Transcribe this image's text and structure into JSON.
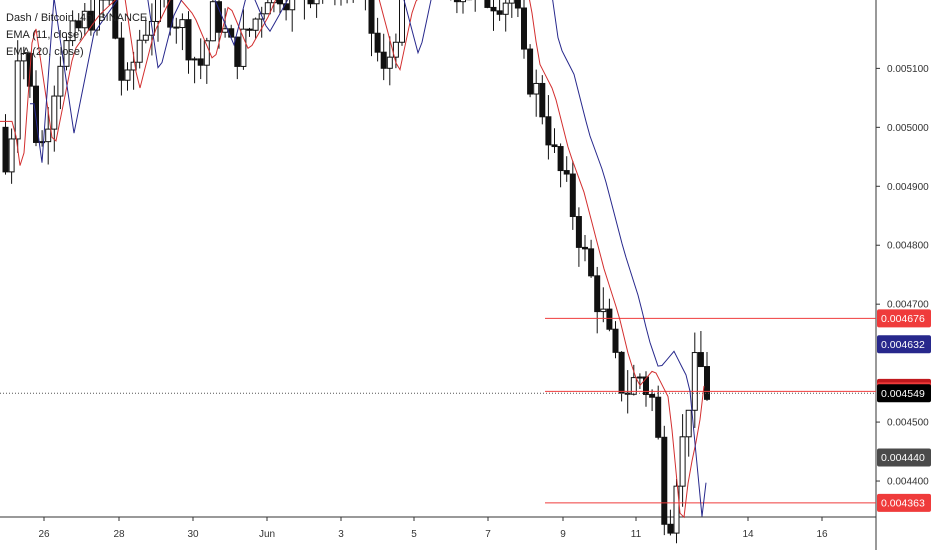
{
  "chart_data": {
    "type": "candlestick",
    "title": "Dash / Bitcoin, 4h, BINANCE",
    "ema_labels": [
      "EMA (11, close)",
      "EMA (20, close)"
    ],
    "y_ticks": [
      "0.005100",
      "0.005000",
      "0.004900",
      "0.004800",
      "0.004700",
      "0.004500",
      "0.004400"
    ],
    "x_ticks": [
      "26",
      "28",
      "30",
      "Jun",
      "3",
      "5",
      "7",
      "9",
      "11",
      "14",
      "16"
    ],
    "ylim": [
      0.004283,
      0.005216
    ],
    "price_badges": [
      {
        "value": "0.004676",
        "color": "#ef3b3b"
      },
      {
        "value": "0.004632",
        "color": "#27288c"
      },
      {
        "value": "0.004558",
        "color": "#c0181c"
      },
      {
        "value": "0.004552",
        "color": "#ef3b3b"
      },
      {
        "value": "0.004549",
        "color": "#000000"
      },
      {
        "value": "0.004440",
        "color": "#4a4a4a"
      },
      {
        "value": "0.004363",
        "color": "#ef3b3b"
      }
    ],
    "horizontal_lines": [
      0.004676,
      0.004552,
      0.004363
    ],
    "current_price": 0.004549,
    "colors": {
      "ema11": "#d32f2f",
      "ema20": "#27288c",
      "hline": "#ef3b3b"
    }
  }
}
